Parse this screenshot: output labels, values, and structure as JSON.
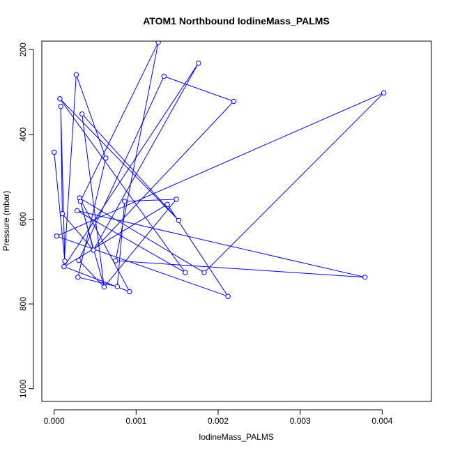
{
  "chart_data": {
    "type": "line",
    "title": "ATOM1 Northbound IodineMass_PALMS",
    "xlabel": "IodineMass_PALMS",
    "ylabel": "Pressure (mbar)",
    "xlim": [
      -0.00015,
      0.0046
    ],
    "ylim": [
      1030,
      180
    ],
    "y_reversed": true,
    "x_ticks": [
      0.0,
      0.001,
      0.002,
      0.003,
      0.004
    ],
    "x_tick_labels": [
      "0.000",
      "0.001",
      "0.002",
      "0.003",
      "0.004"
    ],
    "y_ticks": [
      200,
      400,
      600,
      800,
      1000
    ],
    "y_tick_labels": [
      "200",
      "400",
      "600",
      "800",
      "1000"
    ],
    "grid": false,
    "series": [
      {
        "color": "#0000ff",
        "marker": "open-circle",
        "points": [
          {
            "x": 0.0,
            "y": 442
          },
          {
            "x": 3e-05,
            "y": 640
          },
          {
            "x": 7e-05,
            "y": 316
          },
          {
            "x": 8e-05,
            "y": 334
          },
          {
            "x": 0.0001,
            "y": 587
          },
          {
            "x": 0.00012,
            "y": 712
          },
          {
            "x": 0.00013,
            "y": 699
          },
          {
            "x": 0.00027,
            "y": 259
          },
          {
            "x": 0.00028,
            "y": 580
          },
          {
            "x": 0.00029,
            "y": 737
          },
          {
            "x": 0.0003,
            "y": 697
          },
          {
            "x": 0.00031,
            "y": 550
          },
          {
            "x": 0.00032,
            "y": 558
          },
          {
            "x": 0.00034,
            "y": 352
          },
          {
            "x": 0.00048,
            "y": 673
          },
          {
            "x": 0.00061,
            "y": 760
          },
          {
            "x": 0.00063,
            "y": 456
          },
          {
            "x": 0.00075,
            "y": 698
          },
          {
            "x": 0.00077,
            "y": 759
          },
          {
            "x": 0.00086,
            "y": 558
          },
          {
            "x": 0.00092,
            "y": 771
          },
          {
            "x": 0.00127,
            "y": 183
          },
          {
            "x": 0.00134,
            "y": 263
          },
          {
            "x": 0.00138,
            "y": 565
          },
          {
            "x": 0.00149,
            "y": 553
          },
          {
            "x": 0.00152,
            "y": 603
          },
          {
            "x": 0.0016,
            "y": 726
          },
          {
            "x": 0.00176,
            "y": 232
          },
          {
            "x": 0.00183,
            "y": 726
          },
          {
            "x": 0.00212,
            "y": 782
          },
          {
            "x": 0.00219,
            "y": 322
          },
          {
            "x": 0.00379,
            "y": 737
          },
          {
            "x": 0.00402,
            "y": 302
          }
        ],
        "path_x": [
          0.0,
          0.00013,
          8e-05,
          0.0001,
          0.00048,
          0.00031,
          0.00092,
          0.00012,
          0.00027,
          0.00063,
          0.00029,
          0.00077,
          0.00086,
          0.00149,
          0.00061,
          0.00032,
          0.00127,
          0.00075,
          0.00379,
          0.00028,
          0.0016,
          7e-05,
          0.00152,
          0.00034,
          0.00061,
          0.0003,
          0.00134,
          0.00219,
          0.00048,
          0.00176,
          0.00012,
          0.00138,
          0.00212,
          3e-05,
          0.00402,
          0.00183,
          0.00031
        ],
        "path_y": [
          442,
          699,
          334,
          587,
          673,
          550,
          771,
          712,
          259,
          456,
          737,
          759,
          558,
          553,
          760,
          558,
          183,
          698,
          737,
          580,
          726,
          316,
          603,
          352,
          760,
          697,
          263,
          322,
          673,
          232,
          712,
          565,
          782,
          640,
          302,
          726,
          550
        ]
      }
    ]
  }
}
